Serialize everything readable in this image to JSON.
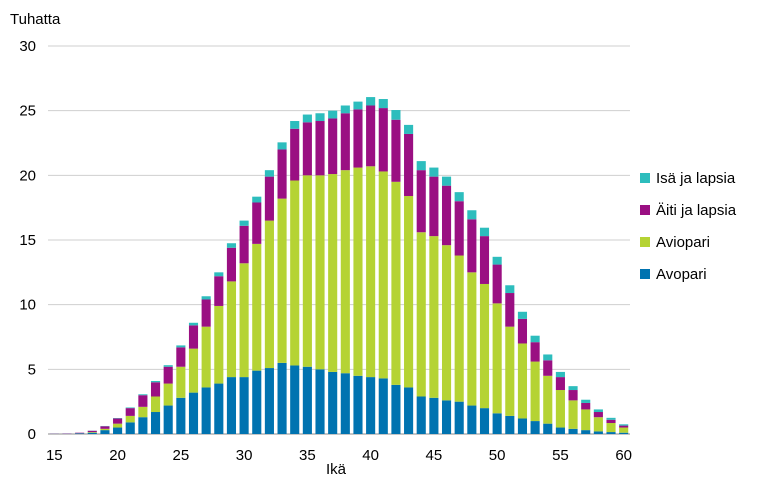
{
  "chart_data": {
    "type": "bar",
    "stacked": true,
    "unit_label": "Tuhatta",
    "xlabel": "Ikä",
    "ylabel": "",
    "ylim": [
      0,
      30
    ],
    "yticks": [
      0,
      5,
      10,
      15,
      20,
      25,
      30
    ],
    "xticks": [
      15,
      20,
      25,
      30,
      35,
      40,
      45,
      50,
      55,
      60
    ],
    "grid": "horizontal",
    "legend_placement": "right",
    "x": [
      15,
      16,
      17,
      18,
      19,
      20,
      21,
      22,
      23,
      24,
      25,
      26,
      27,
      28,
      29,
      30,
      31,
      32,
      33,
      34,
      35,
      36,
      37,
      38,
      39,
      40,
      41,
      42,
      43,
      44,
      45,
      46,
      47,
      48,
      49,
      50,
      51,
      52,
      53,
      54,
      55,
      56,
      57,
      58,
      59,
      60
    ],
    "series": [
      {
        "name": "Avopari",
        "color": "#0073b0",
        "values": [
          0.01,
          0.02,
          0.05,
          0.1,
          0.3,
          0.5,
          0.9,
          1.3,
          1.7,
          2.2,
          2.8,
          3.2,
          3.6,
          3.9,
          4.4,
          4.4,
          4.9,
          5.1,
          5.5,
          5.3,
          5.2,
          5.0,
          4.8,
          4.7,
          4.5,
          4.4,
          4.3,
          3.8,
          3.6,
          2.9,
          2.8,
          2.6,
          2.5,
          2.2,
          2.0,
          1.6,
          1.4,
          1.2,
          1.0,
          0.8,
          0.5,
          0.4,
          0.3,
          0.2,
          0.15,
          0.1
        ]
      },
      {
        "name": "Aviopari",
        "color": "#b5d334",
        "values": [
          0.0,
          0.0,
          0.01,
          0.05,
          0.1,
          0.3,
          0.5,
          0.8,
          1.2,
          1.7,
          2.4,
          3.4,
          4.7,
          6.0,
          7.4,
          8.8,
          9.8,
          11.4,
          12.7,
          14.3,
          14.8,
          15.0,
          15.3,
          15.7,
          16.1,
          16.3,
          16.0,
          15.7,
          14.8,
          12.7,
          12.5,
          12.0,
          11.3,
          10.3,
          9.6,
          8.5,
          6.9,
          5.8,
          4.6,
          3.7,
          2.9,
          2.2,
          1.6,
          1.1,
          0.7,
          0.4
        ]
      },
      {
        "name": "Äiti ja lapsia",
        "color": "#9a0f82",
        "values": [
          0.01,
          0.02,
          0.04,
          0.1,
          0.2,
          0.4,
          0.6,
          0.9,
          1.1,
          1.3,
          1.5,
          1.8,
          2.1,
          2.3,
          2.6,
          2.9,
          3.2,
          3.4,
          3.8,
          4.0,
          4.1,
          4.2,
          4.3,
          4.4,
          4.5,
          4.7,
          4.9,
          4.8,
          4.8,
          4.8,
          4.6,
          4.6,
          4.2,
          4.1,
          3.7,
          3.0,
          2.6,
          1.9,
          1.5,
          1.2,
          1.0,
          0.8,
          0.5,
          0.4,
          0.25,
          0.15
        ]
      },
      {
        "name": "Isä ja lapsia",
        "color": "#2dbdbd",
        "values": [
          0.0,
          0.0,
          0.0,
          0.01,
          0.02,
          0.03,
          0.05,
          0.07,
          0.1,
          0.12,
          0.15,
          0.2,
          0.25,
          0.3,
          0.35,
          0.4,
          0.45,
          0.5,
          0.55,
          0.6,
          0.6,
          0.6,
          0.6,
          0.6,
          0.6,
          0.65,
          0.7,
          0.75,
          0.7,
          0.7,
          0.7,
          0.7,
          0.7,
          0.7,
          0.65,
          0.6,
          0.6,
          0.55,
          0.5,
          0.45,
          0.4,
          0.3,
          0.25,
          0.2,
          0.15,
          0.1
        ]
      }
    ]
  }
}
